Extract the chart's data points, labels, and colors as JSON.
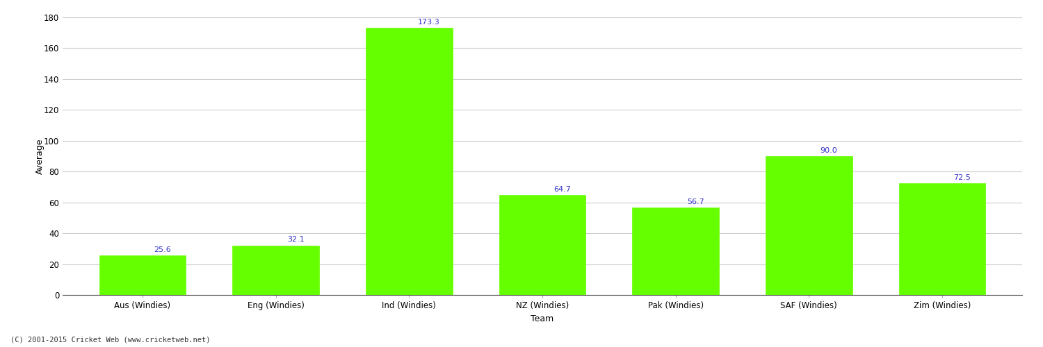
{
  "categories": [
    "Aus (Windies)",
    "Eng (Windies)",
    "Ind (Windies)",
    "NZ (Windies)",
    "Pak (Windies)",
    "SAF (Windies)",
    "Zim (Windies)"
  ],
  "values": [
    25.6,
    32.1,
    173.3,
    64.7,
    56.7,
    90.0,
    72.5
  ],
  "bar_color": "#66ff00",
  "bar_edge_color": "#66ff00",
  "label_color": "#3333cc",
  "ylabel": "Average",
  "xlabel": "Team",
  "ylim": [
    0,
    180
  ],
  "yticks": [
    0,
    20,
    40,
    60,
    80,
    100,
    120,
    140,
    160,
    180
  ],
  "grid_color": "#cccccc",
  "bg_color": "#ffffff",
  "footer": "(C) 2001-2015 Cricket Web (www.cricketweb.net)",
  "label_fontsize": 8,
  "axis_label_fontsize": 9,
  "tick_fontsize": 8.5
}
